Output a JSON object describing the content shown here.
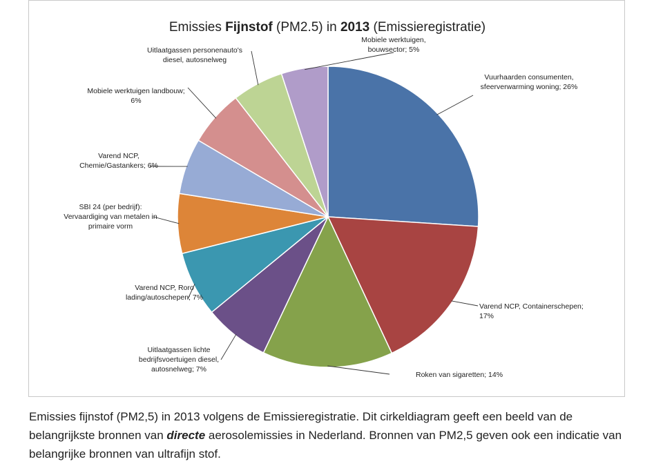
{
  "chart_data": {
    "type": "pie",
    "title_parts": [
      "Emissies ",
      "Fijnstof",
      " (PM2.5) in ",
      "2013",
      " (Emissieregistratie)"
    ],
    "slices": [
      {
        "label": [
          "Vuurhaarden consumenten,",
          "sfeerverwarming woning; 26%"
        ],
        "value": 26,
        "color": "#4a73a8"
      },
      {
        "label": [
          "Varend NCP, Containerschepen;",
          "17%"
        ],
        "value": 17,
        "color": "#a84442"
      },
      {
        "label": [
          "Roken van sigaretten; 14%"
        ],
        "value": 14,
        "color": "#85a24b"
      },
      {
        "label": [
          "Uitlaatgassen lichte",
          "bedrijfsvoertuigen diesel,",
          "autosnelweg; 7%"
        ],
        "value": 7,
        "color": "#6b5088"
      },
      {
        "label": [
          "Varend NCP, Roro",
          "lading/autoschepen; 7%"
        ],
        "value": 7,
        "color": "#3b97b0"
      },
      {
        "label": [
          "SBI 24 (per bedrijf):",
          "Vervaardiging van metalen in",
          "primaire vorm"
        ],
        "value": 6.4,
        "color": "#dd8538"
      },
      {
        "label": [
          "Varend NCP,",
          "Chemie/Gastankers; 6%"
        ],
        "value": 6,
        "color": "#97abd5"
      },
      {
        "label": [
          "Mobiele werktuigen landbouw;",
          "6%"
        ],
        "value": 6,
        "color": "#d48f8e"
      },
      {
        "label": [
          "Uitlaatgassen personenauto's",
          "diesel, autosnelweg"
        ],
        "value": 5.5,
        "color": "#bdd494"
      },
      {
        "label": [
          "Mobiele werktuigen,",
          "bouwsector; 5%"
        ],
        "value": 5,
        "color": "#b09cc9"
      }
    ]
  },
  "caption": {
    "part1": "Emissies fijnstof (PM2,5) in 2013 volgens de Emissieregistratie. Dit cirkeldiagram geeft een beeld van de belangrijkste bronnen van ",
    "emphasis": "directe",
    "part2": " aerosolemissies in Nederland. Bronnen van PM2,5 geven ook een indicatie van belangrijke bronnen van ultrafijn stof."
  }
}
